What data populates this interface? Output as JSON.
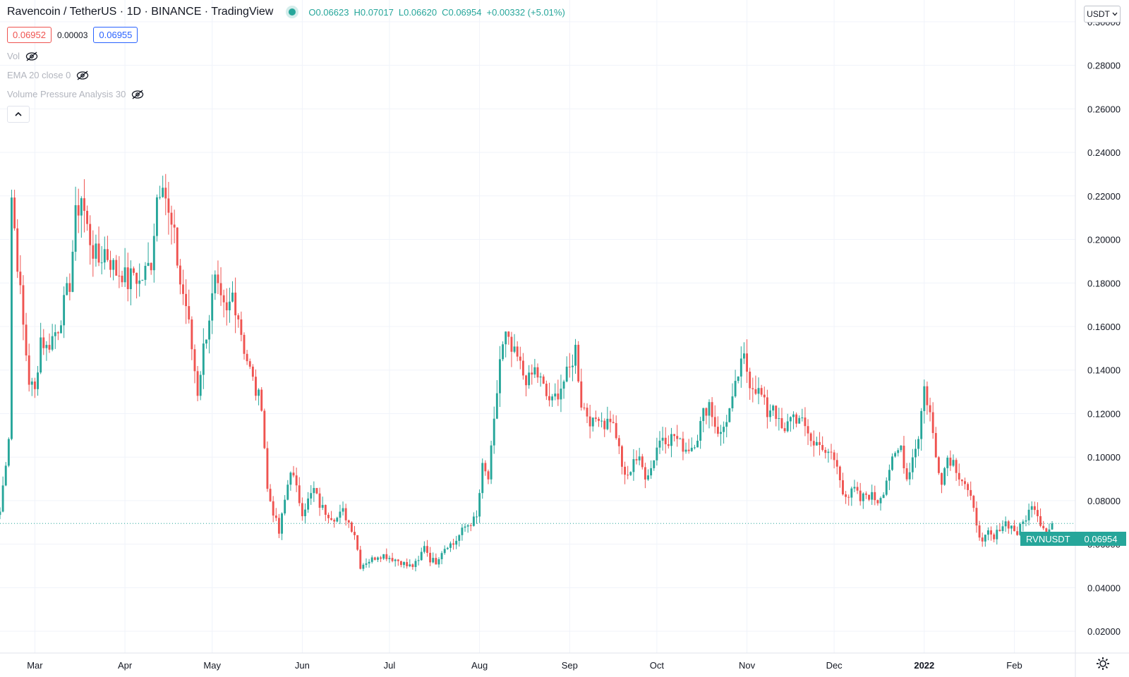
{
  "header": {
    "symbol_title": "Ravencoin / TetherUS · 1D · BINANCE · TradingView",
    "o_label": "O",
    "o_value": "0.06623",
    "h_label": "H",
    "h_value": "0.07017",
    "l_label": "L",
    "l_value": "0.06620",
    "c_label": "C",
    "c_value": "0.06954",
    "change": "+0.00332 (+5.01%)"
  },
  "quotes": {
    "sell": "0.06952",
    "spread": "0.00003",
    "buy": "0.06955"
  },
  "indicators": [
    {
      "label": "Vol"
    },
    {
      "label": "EMA 20 close 0"
    },
    {
      "label": "Volume Pressure Analysis 30"
    }
  ],
  "currency_selector": "USDT",
  "last_price": {
    "symbol": "RVNUSDT",
    "value": "0.06954"
  },
  "colors": {
    "up": "#26a69a",
    "down": "#ef5350",
    "grid": "#f0f3fa",
    "axis_text": "#131722"
  },
  "icons": {
    "eye": "eye-off-icon",
    "collapse": "chevron-up-icon",
    "settings": "gear-icon"
  },
  "chart_data": {
    "type": "candlestick",
    "ylim": [
      0.01,
      0.31
    ],
    "y_ticks": [
      "0.30000",
      "0.28000",
      "0.26000",
      "0.24000",
      "0.22000",
      "0.20000",
      "0.18000",
      "0.16000",
      "0.14000",
      "0.12000",
      "0.10000",
      "0.08000",
      "0.06000",
      "0.04000",
      "0.02000"
    ],
    "x_ticks": [
      {
        "label": "Mar",
        "day": 12
      },
      {
        "label": "Apr",
        "day": 43
      },
      {
        "label": "May",
        "day": 73
      },
      {
        "label": "Jun",
        "day": 104
      },
      {
        "label": "Jul",
        "day": 134
      },
      {
        "label": "Aug",
        "day": 165
      },
      {
        "label": "Sep",
        "day": 196
      },
      {
        "label": "Oct",
        "day": 226
      },
      {
        "label": "Nov",
        "day": 257
      },
      {
        "label": "Dec",
        "day": 287
      },
      {
        "label": "2022",
        "day": 318
      },
      {
        "label": "Feb",
        "day": 349
      }
    ],
    "day_range": [
      0,
      370
    ],
    "last_price": 0.06954,
    "anchors": [
      [
        0,
        0.075
      ],
      [
        3,
        0.11
      ],
      [
        4,
        0.22
      ],
      [
        6,
        0.19
      ],
      [
        8,
        0.16
      ],
      [
        10,
        0.135
      ],
      [
        12,
        0.13
      ],
      [
        14,
        0.155
      ],
      [
        16,
        0.15
      ],
      [
        18,
        0.155
      ],
      [
        20,
        0.16
      ],
      [
        22,
        0.17
      ],
      [
        24,
        0.18
      ],
      [
        26,
        0.21
      ],
      [
        28,
        0.22
      ],
      [
        30,
        0.205
      ],
      [
        32,
        0.195
      ],
      [
        34,
        0.19
      ],
      [
        36,
        0.195
      ],
      [
        38,
        0.19
      ],
      [
        40,
        0.185
      ],
      [
        42,
        0.185
      ],
      [
        44,
        0.18
      ],
      [
        46,
        0.185
      ],
      [
        48,
        0.18
      ],
      [
        50,
        0.185
      ],
      [
        52,
        0.19
      ],
      [
        54,
        0.22
      ],
      [
        56,
        0.23
      ],
      [
        58,
        0.21
      ],
      [
        60,
        0.2
      ],
      [
        62,
        0.18
      ],
      [
        64,
        0.17
      ],
      [
        66,
        0.15
      ],
      [
        68,
        0.13
      ],
      [
        70,
        0.15
      ],
      [
        72,
        0.165
      ],
      [
        74,
        0.18
      ],
      [
        76,
        0.17
      ],
      [
        78,
        0.165
      ],
      [
        80,
        0.175
      ],
      [
        82,
        0.165
      ],
      [
        84,
        0.15
      ],
      [
        86,
        0.14
      ],
      [
        88,
        0.13
      ],
      [
        90,
        0.125
      ],
      [
        92,
        0.085
      ],
      [
        94,
        0.075
      ],
      [
        96,
        0.065
      ],
      [
        98,
        0.08
      ],
      [
        100,
        0.095
      ],
      [
        102,
        0.085
      ],
      [
        104,
        0.075
      ],
      [
        106,
        0.08
      ],
      [
        108,
        0.085
      ],
      [
        110,
        0.078
      ],
      [
        112,
        0.075
      ],
      [
        114,
        0.073
      ],
      [
        116,
        0.072
      ],
      [
        118,
        0.075
      ],
      [
        120,
        0.07
      ],
      [
        122,
        0.065
      ],
      [
        124,
        0.05
      ],
      [
        126,
        0.052
      ],
      [
        128,
        0.053
      ],
      [
        130,
        0.055
      ],
      [
        132,
        0.055
      ],
      [
        134,
        0.054
      ],
      [
        136,
        0.053
      ],
      [
        138,
        0.052
      ],
      [
        140,
        0.05
      ],
      [
        142,
        0.05
      ],
      [
        144,
        0.052
      ],
      [
        146,
        0.06
      ],
      [
        148,
        0.053
      ],
      [
        150,
        0.052
      ],
      [
        152,
        0.057
      ],
      [
        154,
        0.06
      ],
      [
        156,
        0.06
      ],
      [
        158,
        0.064
      ],
      [
        160,
        0.068
      ],
      [
        162,
        0.07
      ],
      [
        164,
        0.072
      ],
      [
        166,
        0.095
      ],
      [
        168,
        0.09
      ],
      [
        170,
        0.115
      ],
      [
        172,
        0.145
      ],
      [
        174,
        0.155
      ],
      [
        176,
        0.148
      ],
      [
        178,
        0.145
      ],
      [
        180,
        0.138
      ],
      [
        182,
        0.135
      ],
      [
        184,
        0.14
      ],
      [
        186,
        0.135
      ],
      [
        188,
        0.128
      ],
      [
        190,
        0.125
      ],
      [
        192,
        0.13
      ],
      [
        194,
        0.135
      ],
      [
        196,
        0.14
      ],
      [
        198,
        0.15
      ],
      [
        200,
        0.125
      ],
      [
        202,
        0.12
      ],
      [
        204,
        0.115
      ],
      [
        206,
        0.12
      ],
      [
        208,
        0.115
      ],
      [
        210,
        0.118
      ],
      [
        212,
        0.11
      ],
      [
        214,
        0.095
      ],
      [
        216,
        0.09
      ],
      [
        218,
        0.1
      ],
      [
        220,
        0.098
      ],
      [
        222,
        0.092
      ],
      [
        224,
        0.095
      ],
      [
        226,
        0.105
      ],
      [
        228,
        0.11
      ],
      [
        230,
        0.108
      ],
      [
        232,
        0.11
      ],
      [
        234,
        0.106
      ],
      [
        236,
        0.104
      ],
      [
        238,
        0.105
      ],
      [
        240,
        0.11
      ],
      [
        242,
        0.12
      ],
      [
        244,
        0.125
      ],
      [
        246,
        0.115
      ],
      [
        248,
        0.11
      ],
      [
        250,
        0.118
      ],
      [
        252,
        0.125
      ],
      [
        254,
        0.138
      ],
      [
        256,
        0.145
      ],
      [
        258,
        0.135
      ],
      [
        260,
        0.132
      ],
      [
        262,
        0.128
      ],
      [
        264,
        0.12
      ],
      [
        266,
        0.125
      ],
      [
        268,
        0.115
      ],
      [
        270,
        0.11
      ],
      [
        272,
        0.12
      ],
      [
        274,
        0.118
      ],
      [
        276,
        0.115
      ],
      [
        278,
        0.112
      ],
      [
        280,
        0.105
      ],
      [
        282,
        0.108
      ],
      [
        284,
        0.1
      ],
      [
        286,
        0.102
      ],
      [
        288,
        0.095
      ],
      [
        290,
        0.085
      ],
      [
        292,
        0.082
      ],
      [
        294,
        0.085
      ],
      [
        296,
        0.08
      ],
      [
        298,
        0.083
      ],
      [
        300,
        0.082
      ],
      [
        302,
        0.08
      ],
      [
        304,
        0.085
      ],
      [
        306,
        0.095
      ],
      [
        308,
        0.1
      ],
      [
        310,
        0.105
      ],
      [
        312,
        0.09
      ],
      [
        314,
        0.1
      ],
      [
        316,
        0.11
      ],
      [
        318,
        0.132
      ],
      [
        320,
        0.12
      ],
      [
        322,
        0.1
      ],
      [
        324,
        0.09
      ],
      [
        326,
        0.1
      ],
      [
        328,
        0.098
      ],
      [
        330,
        0.092
      ],
      [
        332,
        0.088
      ],
      [
        334,
        0.08
      ],
      [
        336,
        0.07
      ],
      [
        338,
        0.06
      ],
      [
        340,
        0.065
      ],
      [
        342,
        0.062
      ],
      [
        344,
        0.068
      ],
      [
        346,
        0.07
      ],
      [
        348,
        0.068
      ],
      [
        350,
        0.065
      ],
      [
        352,
        0.07
      ],
      [
        354,
        0.075
      ],
      [
        356,
        0.078
      ],
      [
        358,
        0.07
      ],
      [
        360,
        0.066
      ],
      [
        362,
        0.0695
      ]
    ]
  }
}
